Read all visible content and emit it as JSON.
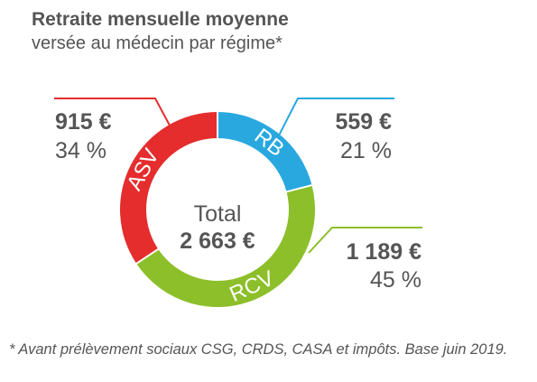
{
  "chart_data": {
    "type": "pie",
    "title": "Retraite mensuelle moyenne",
    "subtitle": "versée au médecin par régime*",
    "categories": [
      "RB",
      "RCV",
      "ASV"
    ],
    "values": [
      559,
      1189,
      915
    ],
    "value_labels": [
      "559 €",
      "1 189 €",
      "915 €"
    ],
    "percent_labels": [
      "21 %",
      "45 %",
      "34 %"
    ],
    "percentages": [
      21,
      45,
      34
    ],
    "colors": [
      "#29a8e0",
      "#8cbf2a",
      "#e52d2d"
    ],
    "center_label": "Total",
    "center_value": "2 663 €",
    "footnote": "* Avant prélèvement sociaux CSG, CRDS, CASA et impôts. Base juin 2019."
  }
}
